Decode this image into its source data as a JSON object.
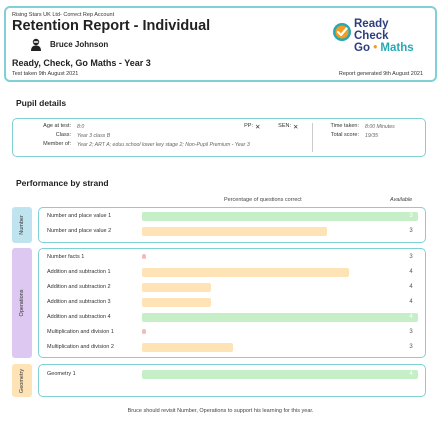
{
  "header": {
    "org": "Rising Stars UK Ltd- Correct Rep Account",
    "title": "Retention Report - Individual",
    "pupil_name": "Bruce Johnson",
    "subtitle": "Ready, Check, Go Maths - Year 3",
    "test_date": "Test taken 9th August 2021",
    "generated": "Report generated 9th August 2021",
    "logo": {
      "line1": "Ready",
      "line2": "Check",
      "line3_a": "Go",
      "line3_dot": "•",
      "line3_b": "Maths"
    }
  },
  "pupil_details": {
    "section_title": "Pupil details",
    "age_label": "Age at test:",
    "age_value": "8:0",
    "pp_label": "PP:",
    "pp_value": "✕",
    "sen_label": "SEN:",
    "sen_value": "✕",
    "class_label": "Class:",
    "class_value": "Year 3 class B",
    "member_label": "Member of:",
    "member_value": "Year 2; ART A; eduu school lower key stage 2; Non-Pupil Premium - Year 3",
    "time_label": "Time taken:",
    "time_value": "8:00 Minutes",
    "score_label": "Total score:",
    "score_value": "19/35"
  },
  "performance": {
    "section_title": "Performance by strand",
    "col_percentage": "Percentage of questions correct",
    "col_available": "Available",
    "strands": [
      {
        "name": "Number",
        "tab_color": "#bfe3ef",
        "rows": [
          {
            "label": "Number and place value 1",
            "available": "3",
            "percent": 100,
            "status": "green"
          },
          {
            "label": "Number and place value 2",
            "available": "3",
            "percent": 67,
            "status": "orange"
          }
        ]
      },
      {
        "name": "Operations",
        "tab_color": "#dcc8f0",
        "rows": [
          {
            "label": "Number facts 1",
            "available": "3",
            "percent": 0,
            "status": "red"
          },
          {
            "label": "Addition and subtraction 1",
            "available": "4",
            "percent": 75,
            "status": "orange"
          },
          {
            "label": "Addition and subtraction 2",
            "available": "4",
            "percent": 25,
            "status": "orange"
          },
          {
            "label": "Addition and subtraction 3",
            "available": "4",
            "percent": 25,
            "status": "orange"
          },
          {
            "label": "Addition and subtraction 4",
            "available": "4",
            "percent": 100,
            "status": "green"
          },
          {
            "label": "Multiplication and division 1",
            "available": "3",
            "percent": 0,
            "status": "red"
          },
          {
            "label": "Multiplication and division 2",
            "available": "3",
            "percent": 33,
            "status": "orange"
          }
        ]
      },
      {
        "name": "Geometry",
        "tab_color": "#fde3b5",
        "rows": [
          {
            "label": "Geometry 1",
            "available": "4",
            "percent": 100,
            "status": "green"
          }
        ]
      }
    ],
    "footer_note": "Bruce should revisit Number, Operations to support his learning for this year."
  }
}
